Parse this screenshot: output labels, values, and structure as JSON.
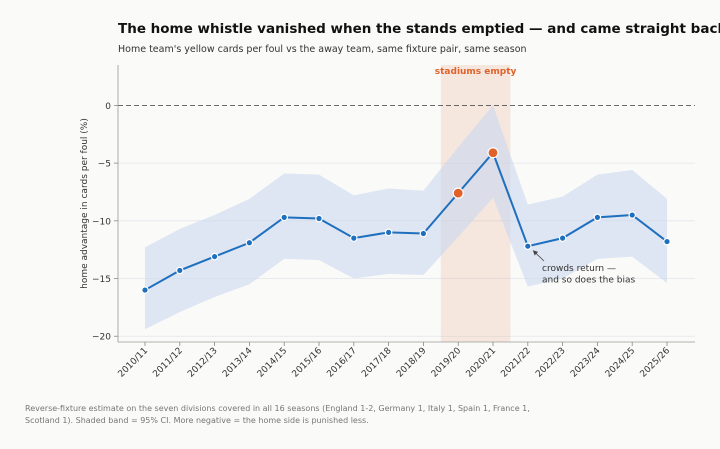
{
  "title": "The home whistle vanished when the stands emptied — and came straight back",
  "subtitle": "Home team's yellow cards per foul vs the away team, same fixture pair, same season",
  "footnote": "Reverse-fixture estimate on the seven divisions covered in all 16 seasons (England 1-2, Germany 1, Italy 1, Spain 1, France 1, Scotland 1). Shaded band = 95% CI. More negative = the home side is punished less.",
  "chart_data": {
    "type": "line",
    "ylabel": "home advantage in cards per foul (%)",
    "ylim": [
      -20.5,
      3.5
    ],
    "yticks": [
      0,
      -5,
      -10,
      -15,
      -20
    ],
    "grid": true,
    "categories": [
      "2010/11",
      "2011/12",
      "2012/13",
      "2013/14",
      "2014/15",
      "2015/16",
      "2016/17",
      "2017/18",
      "2018/19",
      "2019/20",
      "2020/21",
      "2021/22",
      "2022/23",
      "2023/24",
      "2024/25",
      "2025/26"
    ],
    "series": [
      {
        "values": [
          -16.0,
          -14.3,
          -13.1,
          -11.9,
          -9.7,
          -9.8,
          -11.5,
          -11.0,
          -11.1,
          -7.6,
          -4.1,
          -12.2,
          -11.5,
          -9.7,
          -9.5,
          -11.8
        ],
        "ci_lower": [
          -19.4,
          -17.9,
          -16.6,
          -15.5,
          -13.3,
          -13.4,
          -15.0,
          -14.6,
          -14.7,
          -11.4,
          -8.0,
          -15.7,
          -15.0,
          -13.3,
          -13.1,
          -15.4
        ],
        "ci_upper": [
          -12.3,
          -10.7,
          -9.5,
          -8.1,
          -5.9,
          -6.0,
          -7.8,
          -7.2,
          -7.4,
          -3.6,
          0.0,
          -8.6,
          -7.9,
          -6.0,
          -5.6,
          -8.1
        ],
        "color": "#1f6fbf",
        "highlight_color": "#e0622b",
        "highlighted": [
          "2019/20",
          "2020/21"
        ]
      }
    ],
    "reference_line": {
      "y": 0,
      "style": "dashed"
    },
    "shaded_region": {
      "from": "2019/20",
      "to": "2020/21",
      "label": "stadiums empty",
      "color": "#e0622b"
    },
    "annotation": {
      "text_lines": [
        "crowds return —",
        "and so does the bias"
      ],
      "points_to": "2021/22"
    },
    "band_color": "#c9d9ef"
  }
}
